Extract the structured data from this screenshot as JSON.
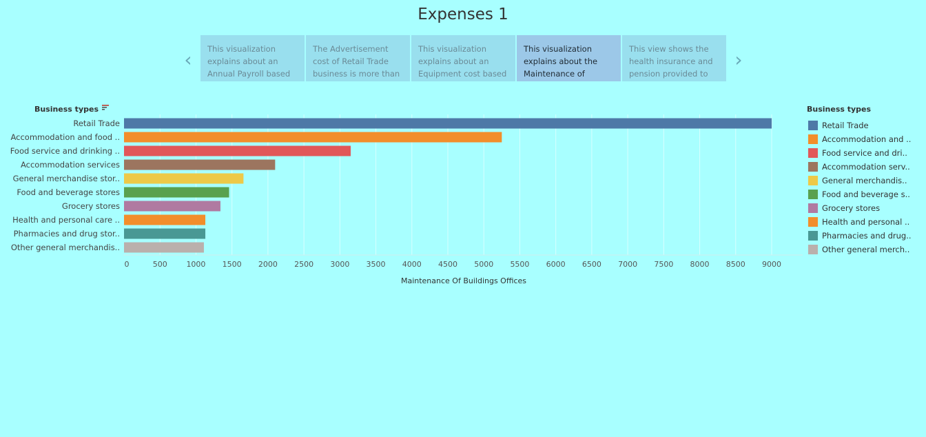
{
  "title": "Expenses 1",
  "story_points": [
    {
      "text": "This visualization explains about an Annual Payroll based",
      "active": false
    },
    {
      "text": "The Advertisement cost of Retail Trade business is more than",
      "active": false
    },
    {
      "text": "This visualization explains about an Equipment cost based",
      "active": false
    },
    {
      "text": "This visualization explains about the Maintenance of",
      "active": true
    },
    {
      "text": "This view shows the health insurance and pension provided to",
      "active": false
    }
  ],
  "nav": {
    "prev": "‹",
    "next": "›"
  },
  "chart_data": {
    "type": "bar",
    "orientation": "horizontal",
    "y_header": "Business types",
    "xlabel": "Maintenance Of Buildings Offices",
    "xlim": [
      0,
      9000
    ],
    "xticks": [
      0,
      500,
      1000,
      1500,
      2000,
      2500,
      3000,
      3500,
      4000,
      4500,
      5000,
      5500,
      6000,
      6500,
      7000,
      7500,
      8000,
      8500,
      9000
    ],
    "grid": true,
    "categories": [
      "Retail Trade",
      "Accommodation and food ..",
      "Food service and drinking ..",
      "Accommodation services",
      "General merchandise stor..",
      "Food and beverage stores",
      "Grocery stores",
      "Health and personal care ..",
      "Pharmacies and drug stor..",
      "Other general merchandis.."
    ],
    "values": [
      9000,
      5250,
      3150,
      2100,
      1660,
      1460,
      1340,
      1130,
      1130,
      1110
    ],
    "colors": [
      "#4e79a7",
      "#f28e2b",
      "#e15759",
      "#9c755f",
      "#edc948",
      "#59a14f",
      "#b07aa1",
      "#f28e2b",
      "#499894",
      "#bab0ac"
    ]
  },
  "legend": {
    "title": "Business types",
    "items": [
      {
        "label": "Retail Trade",
        "color": "#4e79a7"
      },
      {
        "label": "Accommodation and ..",
        "color": "#f28e2b"
      },
      {
        "label": "Food service and dri..",
        "color": "#e15759"
      },
      {
        "label": "Accommodation serv..",
        "color": "#9c755f"
      },
      {
        "label": "General merchandis..",
        "color": "#edc948"
      },
      {
        "label": "Food and beverage s..",
        "color": "#59a14f"
      },
      {
        "label": "Grocery stores",
        "color": "#b07aa1"
      },
      {
        "label": "Health and personal ..",
        "color": "#f28e2b"
      },
      {
        "label": "Pharmacies and drug..",
        "color": "#499894"
      },
      {
        "label": "Other general merch..",
        "color": "#bab0ac"
      }
    ]
  }
}
